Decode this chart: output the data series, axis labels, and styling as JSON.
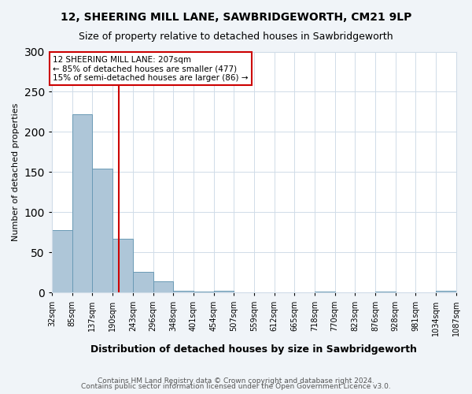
{
  "title1": "12, SHEERING MILL LANE, SAWBRIDGEWORTH, CM21 9LP",
  "title2": "Size of property relative to detached houses in Sawbridgeworth",
  "xlabel": "Distribution of detached houses by size in Sawbridgeworth",
  "ylabel": "Number of detached properties",
  "bin_labels": [
    "32sqm",
    "85sqm",
    "137sqm",
    "190sqm",
    "243sqm",
    "296sqm",
    "348sqm",
    "401sqm",
    "454sqm",
    "507sqm",
    "559sqm",
    "612sqm",
    "665sqm",
    "718sqm",
    "770sqm",
    "823sqm",
    "876sqm",
    "928sqm",
    "981sqm",
    "1034sqm",
    "1087sqm"
  ],
  "bar_heights": [
    78,
    222,
    154,
    67,
    26,
    14,
    2,
    1,
    2,
    0,
    0,
    0,
    0,
    1,
    0,
    0,
    1,
    0,
    0,
    2
  ],
  "bar_color": "#aec6d8",
  "bar_edge_color": "#6a9ab5",
  "vline_x": 207,
  "vline_color": "#cc0000",
  "annotation_lines": [
    "12 SHEERING MILL LANE: 207sqm",
    "← 85% of detached houses are smaller (477)",
    "15% of semi-detached houses are larger (86) →"
  ],
  "annotation_box_color": "#ffffff",
  "annotation_box_edge_color": "#cc0000",
  "ylim": [
    0,
    300
  ],
  "yticks": [
    0,
    50,
    100,
    150,
    200,
    250,
    300
  ],
  "footer1": "Contains HM Land Registry data © Crown copyright and database right 2024.",
  "footer2": "Contains public sector information licensed under the Open Government Licence v3.0.",
  "bg_color": "#f0f4f8",
  "plot_bg_color": "#ffffff",
  "grid_color": "#d0dce8",
  "bin_edges": [
    32,
    85,
    137,
    190,
    243,
    296,
    348,
    401,
    454,
    507,
    559,
    612,
    665,
    718,
    770,
    823,
    876,
    928,
    981,
    1034,
    1087
  ]
}
